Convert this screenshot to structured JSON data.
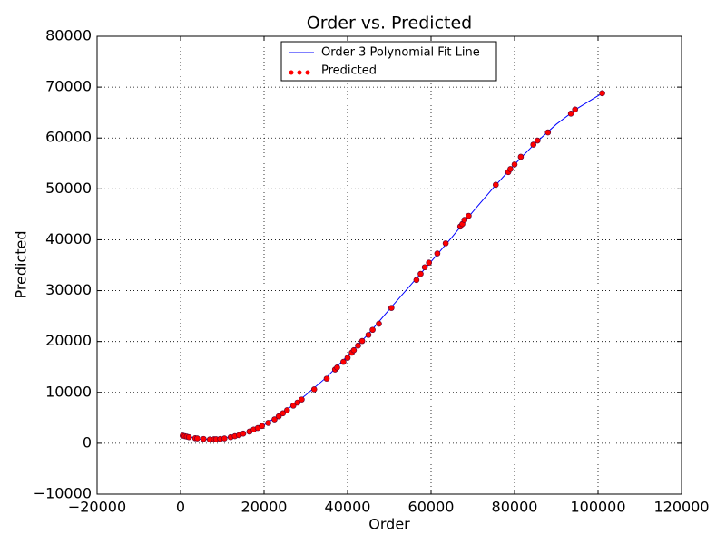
{
  "chart_data": {
    "type": "scatter",
    "title": "Order vs. Predicted",
    "x_label": "Order",
    "y_label": "Predicted",
    "xlim": [
      -20000,
      120000
    ],
    "xticks": [
      {
        "value": -20000,
        "label": "−20000"
      },
      0,
      20000,
      40000,
      60000,
      80000,
      100000,
      120000
    ],
    "ylim": [
      -10000,
      80000
    ],
    "yticks": [
      {
        "value": -10000,
        "label": "−10000"
      },
      0,
      10000,
      20000,
      30000,
      40000,
      50000,
      60000,
      70000,
      80000
    ],
    "grid": true,
    "legend": "upper center",
    "series": [
      {
        "name": "Order 3 Polynomial Fit Line",
        "type": "line",
        "color": "#0000ff",
        "x": [
          500,
          5000,
          10000,
          15000,
          20000,
          25000,
          30000,
          35000,
          40000,
          45000,
          50000,
          55000,
          60000,
          65000,
          70000,
          75000,
          80000,
          85000,
          90000,
          95000,
          101000
        ],
        "values": [
          1500,
          750,
          900,
          2000,
          3600,
          6300,
          9500,
          13000,
          17200,
          21500,
          26300,
          31000,
          35700,
          40500,
          45500,
          50300,
          54800,
          59000,
          62700,
          65800,
          68800
        ]
      },
      {
        "name": "Predicted",
        "type": "scatter",
        "color": "#ff0000",
        "x": [
          500,
          1000,
          1500,
          2000,
          3500,
          4000,
          5500,
          7000,
          8000,
          8500,
          9500,
          10500,
          12000,
          13000,
          14000,
          15000,
          16500,
          17500,
          18500,
          19500,
          21000,
          22500,
          23500,
          24500,
          25500,
          27000,
          28000,
          29000,
          32000,
          35000,
          37000,
          37500,
          39000,
          40000,
          41000,
          41500,
          42500,
          43500,
          45000,
          46000,
          47500,
          50500,
          56500,
          57500,
          58500,
          59500,
          61500,
          63500,
          67000,
          67500,
          68000,
          69000,
          75500,
          78500,
          79000,
          80000,
          81500,
          84500,
          85500,
          88000,
          93500,
          94500,
          101000
        ],
        "values": [
          1500,
          1400,
          1300,
          1200,
          1000,
          950,
          850,
          750,
          800,
          800,
          850,
          950,
          1200,
          1400,
          1600,
          1900,
          2300,
          2700,
          3000,
          3400,
          4000,
          4700,
          5300,
          5900,
          6500,
          7400,
          8000,
          8600,
          10600,
          12700,
          14500,
          14900,
          16000,
          16800,
          17800,
          18300,
          19200,
          20100,
          21300,
          22300,
          23500,
          26600,
          32100,
          33300,
          34600,
          35500,
          37300,
          39300,
          42600,
          43100,
          43900,
          44700,
          50800,
          53300,
          53900,
          54800,
          56300,
          58700,
          59500,
          61100,
          64800,
          65600,
          68800
        ]
      }
    ]
  }
}
